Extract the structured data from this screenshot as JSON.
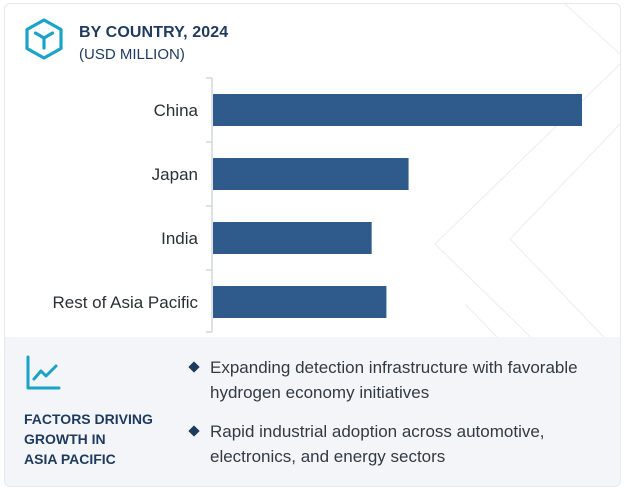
{
  "header": {
    "title": "BY COUNTRY, 2024",
    "subtitle": "(USD MILLION)"
  },
  "colors": {
    "bar": "#2f5b8c",
    "title": "#1e3a5f",
    "axis": "#c9cfd8",
    "panel": "#f3f5f8"
  },
  "icons": {
    "logo": "hexagon-cube-logo",
    "factors": "line-chart-icon",
    "bullet": "diamond-bullet-icon"
  },
  "chart_data": {
    "type": "bar",
    "orientation": "horizontal",
    "categories": [
      "China",
      "Japan",
      "India",
      "Rest of Asia Pacific"
    ],
    "values": [
      100,
      53,
      43,
      47
    ],
    "title": "BY COUNTRY, 2024",
    "subtitle": "(USD MILLION)",
    "xlabel": "",
    "ylabel": "",
    "xlim": [
      0,
      100
    ],
    "grid": false,
    "legend": "none"
  },
  "factors": {
    "title": "FACTORS DRIVING\nGROWTH IN\nASIA PACIFIC",
    "items": [
      "Expanding detection infrastructure with favorable hydrogen economy initiatives",
      "Rapid industrial adoption across automotive, electronics, and energy sectors"
    ]
  }
}
